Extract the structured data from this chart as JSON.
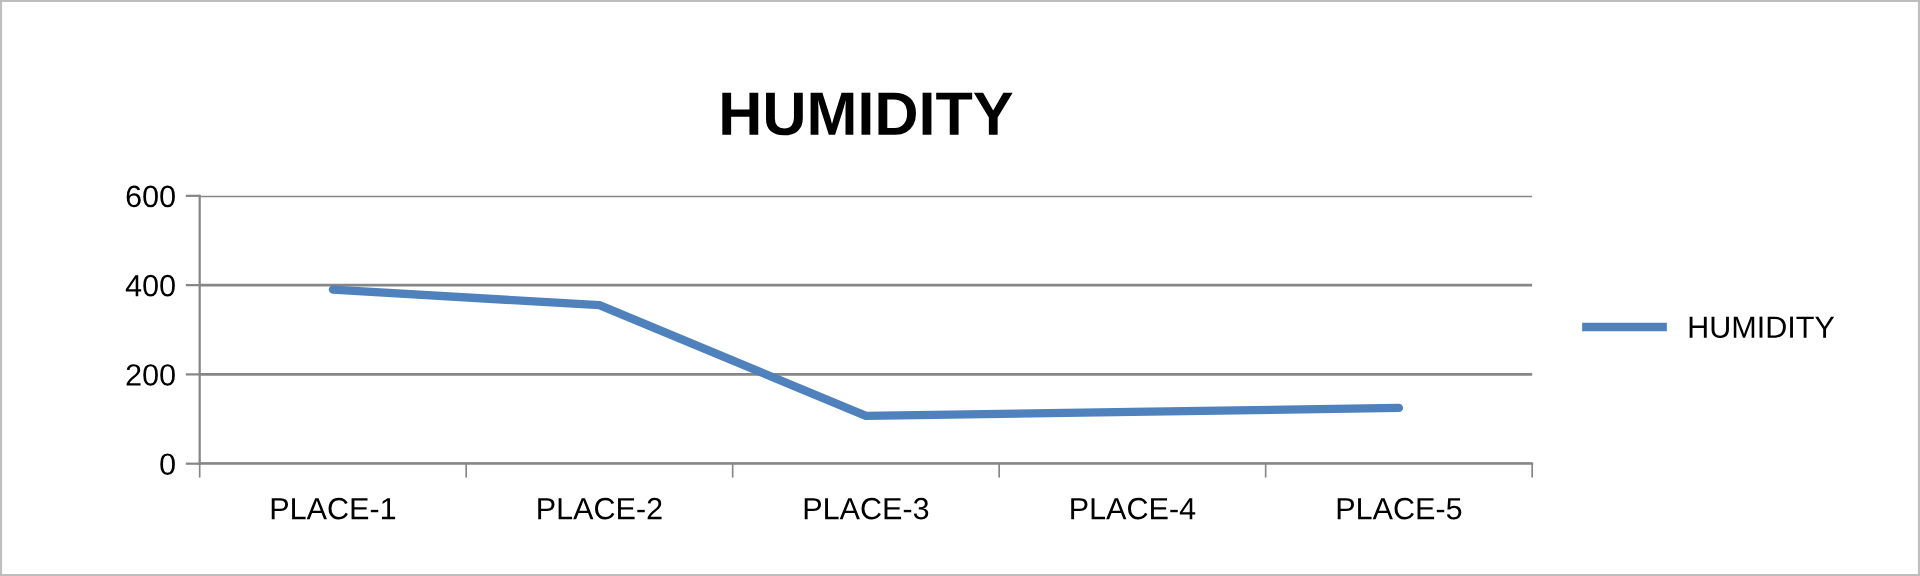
{
  "chart_data": {
    "type": "line",
    "title": "HUMIDITY",
    "categories": [
      "PLACE-1",
      "PLACE-2",
      "PLACE-3",
      "PLACE-4",
      "PLACE-5"
    ],
    "series": [
      {
        "name": "HUMIDITY",
        "color": "#4f81bd",
        "values": [
          390,
          355,
          107,
          116,
          125
        ]
      }
    ],
    "ylim": [
      0,
      600
    ],
    "yticks": [
      0,
      200,
      400,
      600
    ],
    "grid": "y",
    "legend": "right",
    "marker": "none",
    "line_style": "solid"
  }
}
